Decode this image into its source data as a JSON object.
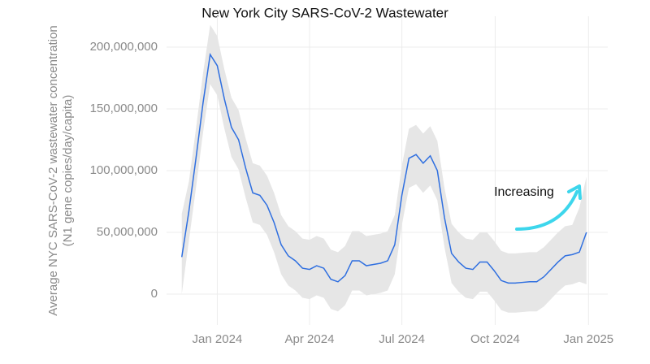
{
  "chart_data": {
    "type": "line",
    "title": "New York City SARS-CoV-2 Wastewater",
    "y_label": [
      "Average NYC SARS-CoV-2 wastewater concentration",
      "(N1 gene copies/day/capita)"
    ],
    "annotation": "Increasing",
    "x": [
      "2023-11-27",
      "2023-12-04",
      "2023-12-11",
      "2023-12-18",
      "2023-12-25",
      "2024-01-01",
      "2024-01-08",
      "2024-01-15",
      "2024-01-22",
      "2024-01-29",
      "2024-02-05",
      "2024-02-12",
      "2024-02-19",
      "2024-02-26",
      "2024-03-04",
      "2024-03-11",
      "2024-03-18",
      "2024-03-25",
      "2024-04-01",
      "2024-04-08",
      "2024-04-15",
      "2024-04-22",
      "2024-04-29",
      "2024-05-06",
      "2024-05-13",
      "2024-05-20",
      "2024-05-27",
      "2024-06-03",
      "2024-06-10",
      "2024-06-17",
      "2024-06-24",
      "2024-07-01",
      "2024-07-08",
      "2024-07-15",
      "2024-07-22",
      "2024-07-29",
      "2024-08-05",
      "2024-08-12",
      "2024-08-19",
      "2024-08-26",
      "2024-09-02",
      "2024-09-09",
      "2024-09-16",
      "2024-09-23",
      "2024-09-30",
      "2024-10-07",
      "2024-10-14",
      "2024-10-21",
      "2024-10-28",
      "2024-11-04",
      "2024-11-11",
      "2024-11-18",
      "2024-11-25",
      "2024-12-02",
      "2024-12-09",
      "2024-12-16",
      "2024-12-23",
      "2024-12-30"
    ],
    "series": [
      {
        "name": "Average",
        "color": "#2f6fe0",
        "values": [
          30000000,
          67000000,
          110000000,
          155000000,
          194000000,
          185000000,
          158000000,
          135000000,
          125000000,
          102000000,
          82000000,
          80000000,
          72000000,
          58000000,
          40000000,
          31000000,
          27000000,
          21000000,
          20000000,
          23000000,
          21000000,
          12000000,
          10000000,
          15000000,
          27000000,
          27000000,
          23000000,
          24000000,
          25000000,
          27000000,
          40000000,
          80000000,
          110000000,
          113000000,
          106000000,
          112000000,
          100000000,
          62000000,
          33000000,
          26000000,
          21000000,
          20000000,
          26000000,
          26000000,
          19000000,
          11000000,
          9000000,
          9000000,
          9500000,
          10000000,
          10000000,
          14000000,
          20000000,
          26000000,
          31000000,
          32000000,
          34000000,
          50000000
        ]
      }
    ],
    "band_color": "#e6e6e6",
    "band_lower": [
      0,
      43000000,
      86000000,
      131000000,
      170000000,
      161000000,
      134000000,
      111000000,
      101000000,
      78000000,
      58000000,
      56000000,
      48000000,
      34000000,
      16000000,
      7000000,
      3000000,
      -3000000,
      -4000000,
      -1000000,
      -3000000,
      -12000000,
      -14000000,
      -9000000,
      3000000,
      3000000,
      -1000000,
      0,
      1000000,
      3000000,
      16000000,
      56000000,
      86000000,
      89000000,
      82000000,
      88000000,
      76000000,
      38000000,
      9000000,
      2000000,
      -3000000,
      -4000000,
      2000000,
      2000000,
      -5000000,
      -13000000,
      -15000000,
      -15000000,
      -14500000,
      -14000000,
      -14000000,
      -10000000,
      -4000000,
      2000000,
      7000000,
      8000000,
      10000000,
      8000000
    ],
    "band_upper": [
      65000000,
      91000000,
      134000000,
      179000000,
      218000000,
      209000000,
      182000000,
      159000000,
      149000000,
      126000000,
      106000000,
      104000000,
      96000000,
      82000000,
      64000000,
      55000000,
      51000000,
      45000000,
      44000000,
      47000000,
      45000000,
      36000000,
      34000000,
      39000000,
      51000000,
      51000000,
      47000000,
      48000000,
      49000000,
      51000000,
      64000000,
      104000000,
      134000000,
      137000000,
      130000000,
      136000000,
      124000000,
      86000000,
      57000000,
      50000000,
      45000000,
      44000000,
      50000000,
      50000000,
      43000000,
      35000000,
      33000000,
      33000000,
      33500000,
      34000000,
      34000000,
      38000000,
      44000000,
      50000000,
      55000000,
      56000000,
      70000000,
      95000000
    ],
    "xlim": [
      "2023-11-12",
      "2025-01-20"
    ],
    "xticks": [
      {
        "value": "2024-01-01",
        "label": "Jan 2024"
      },
      {
        "value": "2024-04-01",
        "label": "Apr 2024"
      },
      {
        "value": "2024-07-01",
        "label": "Jul 2024"
      },
      {
        "value": "2024-10-01",
        "label": "Oct 2024"
      },
      {
        "value": "2025-01-01",
        "label": "Jan 2025"
      }
    ],
    "ylim": [
      -25000000,
      225000000
    ],
    "yticks": [
      0,
      {
        "value": 50000000,
        "label": "50,000,000"
      },
      {
        "value": 100000000,
        "label": "100,000,000"
      },
      {
        "value": 150000000,
        "label": "150,000,000"
      },
      {
        "value": 200000000,
        "label": "200,000,000"
      }
    ],
    "grid": true
  }
}
